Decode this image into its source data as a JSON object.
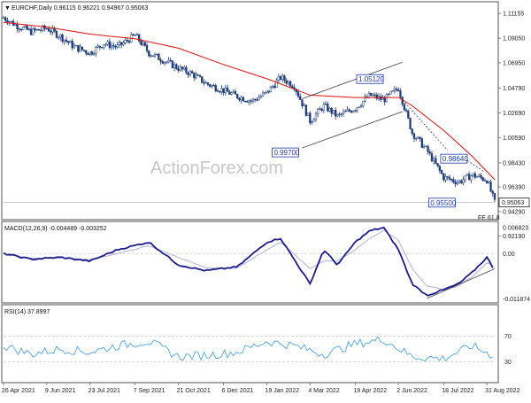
{
  "chart_data": [
    {
      "type": "candlestick",
      "panel": "price",
      "title": "EURCHF,Daily  0.96115 0.96221 0.94967 0.95063",
      "title_glyph": "triangle-down-icon",
      "watermark": "ActionForex.com",
      "ylim": [
        0.9375,
        1.12
      ],
      "y_ticks": [
        "1.11155",
        "1.09050",
        "1.06950",
        "1.04790",
        "1.02690",
        "1.00590",
        "0.98430",
        "0.96390",
        "0.94290",
        "0.92190"
      ],
      "current_price_label": "0.95063",
      "moving_average_color": "#e01010",
      "candle_color": "#1f3d7a",
      "annotations": [
        {
          "label": "0.99700",
          "date": "2022-02-24",
          "value": 0.997
        },
        {
          "label": "1.05120",
          "date": "2022-05-04",
          "value": 1.0512
        },
        {
          "label": "0.98640",
          "date": "2022-08-11",
          "value": 0.9864
        },
        {
          "label": "0.95500",
          "date": "2022-07-28",
          "value": 0.955
        }
      ],
      "fe_label": "FE 61.8",
      "fe_value": 0.9345,
      "close_series": {
        "dates": [
          "2021-04-26",
          "2021-05-10",
          "2021-05-24",
          "2021-06-09",
          "2021-06-23",
          "2021-07-07",
          "2021-07-23",
          "2021-08-06",
          "2021-08-20",
          "2021-09-07",
          "2021-09-21",
          "2021-10-05",
          "2021-10-21",
          "2021-11-04",
          "2021-11-18",
          "2021-12-06",
          "2021-12-20",
          "2022-01-04",
          "2022-01-19",
          "2022-02-02",
          "2022-02-16",
          "2022-03-04",
          "2022-03-18",
          "2022-04-01",
          "2022-04-19",
          "2022-05-04",
          "2022-05-18",
          "2022-06-02",
          "2022-06-16",
          "2022-07-01",
          "2022-07-18",
          "2022-08-02",
          "2022-08-16",
          "2022-08-31",
          "2022-09-08"
        ],
        "values": [
          1.108,
          1.101,
          1.096,
          1.099,
          1.092,
          1.083,
          1.078,
          1.086,
          1.083,
          1.093,
          1.078,
          1.072,
          1.065,
          1.06,
          1.052,
          1.046,
          1.041,
          1.037,
          1.044,
          1.057,
          1.05,
          1.02,
          1.033,
          1.024,
          1.031,
          1.042,
          1.038,
          1.048,
          1.01,
          0.995,
          0.972,
          0.968,
          0.974,
          0.97,
          0.9506
        ]
      },
      "moving_average": {
        "dates": [
          "2021-04-26",
          "2021-06-09",
          "2021-07-23",
          "2021-09-07",
          "2021-10-21",
          "2021-12-06",
          "2022-01-19",
          "2022-03-04",
          "2022-04-19",
          "2022-06-02",
          "2022-06-16",
          "2022-07-18",
          "2022-08-16",
          "2022-09-08"
        ],
        "values": [
          1.104,
          1.1,
          1.094,
          1.09,
          1.082,
          1.068,
          1.056,
          1.042,
          1.04,
          1.04,
          1.033,
          1.012,
          0.99,
          0.97
        ]
      }
    },
    {
      "type": "line",
      "panel": "macd",
      "title": "MACD(12,26,9) -0.004489 -0.003252",
      "y_ticks": [
        "0.006823",
        "0.00",
        "-0.011874"
      ],
      "ylim": [
        -0.0125,
        0.0075
      ],
      "main_color": "#1c1c8c",
      "signal_color": "#b0b0e0",
      "dates": [
        "2021-04-26",
        "2021-05-24",
        "2021-06-23",
        "2021-07-23",
        "2021-08-20",
        "2021-09-21",
        "2021-10-21",
        "2021-11-18",
        "2021-12-20",
        "2022-01-19",
        "2022-02-02",
        "2022-03-04",
        "2022-03-18",
        "2022-04-01",
        "2022-04-19",
        "2022-05-04",
        "2022-05-18",
        "2022-06-02",
        "2022-06-16",
        "2022-07-01",
        "2022-07-18",
        "2022-08-02",
        "2022-08-16",
        "2022-08-31",
        "2022-09-08"
      ],
      "macd": [
        0.0,
        -0.0015,
        -0.001,
        -0.002,
        0.001,
        0.003,
        -0.003,
        -0.0045,
        -0.0035,
        0.003,
        0.004,
        -0.008,
        0.001,
        -0.003,
        0.003,
        0.006,
        0.0068,
        0.001,
        -0.008,
        -0.011,
        -0.0095,
        -0.008,
        -0.005,
        -0.001,
        -0.0045
      ],
      "signal": [
        0.0,
        -0.0012,
        -0.0011,
        -0.0016,
        0.0,
        0.002,
        -0.001,
        -0.0038,
        -0.0038,
        0.001,
        0.003,
        -0.004,
        -0.002,
        -0.002,
        0.001,
        0.004,
        0.006,
        0.0035,
        -0.004,
        -0.0085,
        -0.0095,
        -0.0085,
        -0.006,
        -0.0025,
        -0.0033
      ],
      "trendline": {
        "dates": [
          "2022-07-01",
          "2022-09-08"
        ],
        "values": [
          -0.0118,
          -0.004
        ]
      }
    },
    {
      "type": "line",
      "panel": "rsi",
      "title": "RSI(14) 37.8997",
      "y_ticks": [
        "70",
        "30"
      ],
      "ylim": [
        0,
        100
      ],
      "color": "#4fa3e6",
      "dates": [
        "2021-04-26",
        "2021-05-24",
        "2021-06-23",
        "2021-07-23",
        "2021-08-20",
        "2021-09-21",
        "2021-10-21",
        "2021-11-18",
        "2021-12-20",
        "2022-01-19",
        "2022-02-16",
        "2022-03-18",
        "2022-04-19",
        "2022-05-18",
        "2022-06-16",
        "2022-07-18",
        "2022-08-16",
        "2022-09-08"
      ],
      "values": [
        55,
        42,
        50,
        45,
        55,
        62,
        38,
        40,
        45,
        62,
        55,
        42,
        58,
        65,
        38,
        35,
        55,
        38
      ]
    }
  ],
  "x_axis": {
    "labels": [
      "26 Apr 2021",
      "9 Jun 2021",
      "23 Jul 2021",
      "7 Sep 2021",
      "21 Oct 2021",
      "6 Dec 2021",
      "19 Jan 2022",
      "4 Mar 2022",
      "19 Apr 2022",
      "2 Jun 2022",
      "18 Jul 2022",
      "31 Aug 2022"
    ],
    "dates": [
      "2021-04-26",
      "2021-06-09",
      "2021-07-23",
      "2021-09-07",
      "2021-10-21",
      "2021-12-06",
      "2022-01-19",
      "2022-03-04",
      "2022-04-19",
      "2022-06-02",
      "2022-07-18",
      "2022-08-31"
    ],
    "start": "2021-04-26",
    "end": "2022-09-08"
  }
}
